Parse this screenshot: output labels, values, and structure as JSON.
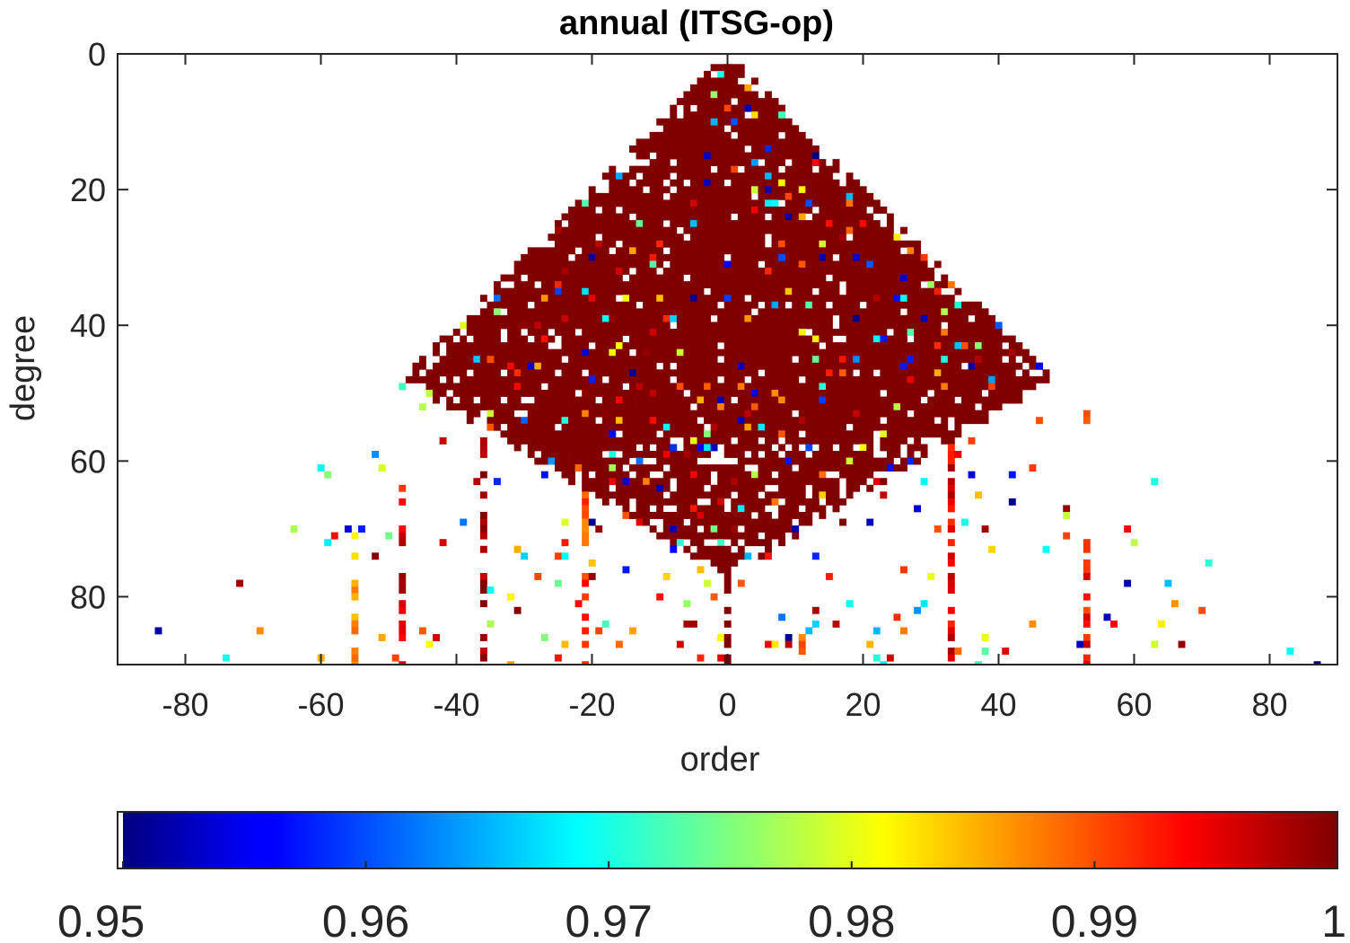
{
  "chart_data": {
    "type": "heatmap",
    "title": "annual (ITSG-op)",
    "xlabel": "order",
    "ylabel": "degree",
    "xlim": [
      -90,
      90
    ],
    "ylim": [
      0,
      90
    ],
    "y_reversed": true,
    "xticks": [
      -80,
      -60,
      -40,
      -20,
      0,
      20,
      40,
      60,
      80
    ],
    "xtick_labels": [
      "-80",
      "-60",
      "-40",
      "-20",
      "0",
      "20",
      "40",
      "60",
      "80"
    ],
    "yticks": [
      0,
      20,
      40,
      60,
      80
    ],
    "ytick_labels": [
      "0",
      "20",
      "40",
      "60",
      "80"
    ],
    "grid": false,
    "cell_rule": "|order| <= degree",
    "dense_region_value": 1.0,
    "colorbar": {
      "colormap": "jet",
      "placement": "bottom",
      "range": [
        0.95,
        1
      ],
      "ticks": [
        0.95,
        0.96,
        0.97,
        0.98,
        0.99,
        1
      ],
      "tick_labels": [
        "0.95",
        "0.96",
        "0.97",
        "0.98",
        "0.99",
        "1"
      ]
    },
    "sample_points": [
      {
        "order": 0,
        "degree": 2,
        "value": 1.0
      },
      {
        "order": 0,
        "degree": 20,
        "value": 1.0
      },
      {
        "order": 5,
        "degree": 40,
        "value": 1.0
      },
      {
        "order": -10,
        "degree": 50,
        "value": 1.0
      },
      {
        "order": 10,
        "degree": 60,
        "value": 1.0
      },
      {
        "order": -2,
        "degree": 10,
        "value": 0.965
      },
      {
        "order": 8,
        "degree": 30,
        "value": 0.96
      },
      {
        "order": -35,
        "degree": 45,
        "value": 0.99
      },
      {
        "order": -48,
        "degree": 49,
        "value": 0.972
      },
      {
        "order": 46,
        "degree": 46,
        "value": 0.955
      },
      {
        "order": 33,
        "degree": 70,
        "value": 0.995
      },
      {
        "order": 53,
        "degree": 80,
        "value": 0.993
      },
      {
        "order": -55,
        "degree": 80,
        "value": 0.985
      },
      {
        "order": -48,
        "degree": 85,
        "value": 0.995
      },
      {
        "order": 87,
        "degree": 90,
        "value": 0.95
      },
      {
        "order": -84,
        "degree": 85,
        "value": 0.952
      },
      {
        "order": 70,
        "degree": 82,
        "value": 0.99
      },
      {
        "order": 63,
        "degree": 63,
        "value": 0.97
      }
    ]
  }
}
